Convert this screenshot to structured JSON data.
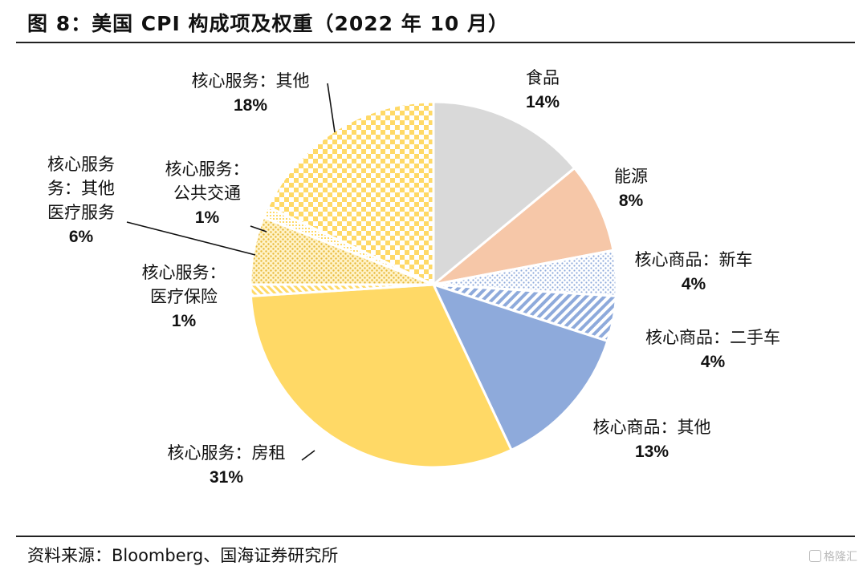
{
  "title": "图 8：美国 CPI 构成项及权重（2022 年 10 月）",
  "source": "资料来源：Bloomberg、国海证券研究所",
  "watermark": "格隆汇",
  "chart_data": {
    "type": "pie",
    "title": "图 8：美国 CPI 构成项及权重（2022 年 10 月）",
    "slices": [
      {
        "label": "食品",
        "value": 14,
        "value_label": "14%",
        "color": "#d9d9d9",
        "pattern": "solid"
      },
      {
        "label": "能源",
        "value": 8,
        "value_label": "8%",
        "color": "#f6c7a8",
        "pattern": "solid"
      },
      {
        "label": "核心商品：新车",
        "value": 4,
        "value_label": "4%",
        "color": "#8eaadb",
        "pattern": "dots"
      },
      {
        "label": "核心商品：二手车",
        "value": 4,
        "value_label": "4%",
        "color": "#8eaadb",
        "pattern": "stripes"
      },
      {
        "label": "核心商品：其他",
        "value": 13,
        "value_label": "13%",
        "color": "#8eaadb",
        "pattern": "solid"
      },
      {
        "label": "核心服务：房租",
        "value": 31,
        "value_label": "31%",
        "color": "#ffd966",
        "pattern": "solid"
      },
      {
        "label": "核心服务：医疗保险",
        "value": 1,
        "value_label": "1%",
        "color": "#ffd966",
        "pattern": "diag"
      },
      {
        "label": "核心服务：医疗服务",
        "value": 6,
        "value_label": "6%",
        "color": "#ffd966",
        "pattern": "dots"
      },
      {
        "label": "核心服务：公共交通",
        "value": 1,
        "value_label": "1%",
        "color": "#ffd966",
        "pattern": "fine"
      },
      {
        "label": "核心服务：其他",
        "value": 18,
        "value_label": "18%",
        "color": "#ffd966",
        "pattern": "check"
      }
    ],
    "label_lines": [
      [
        "食品"
      ],
      [
        "能源"
      ],
      [
        "核心商品：新车"
      ],
      [
        "核心商品：二手车"
      ],
      [
        "核心商品：其他"
      ],
      [
        "核心服务：房租"
      ],
      [
        "核心服务：",
        "医疗保险"
      ],
      [
        "核心服务",
        "务：其他",
        "医疗服务"
      ],
      [
        "核心服务：",
        "公共交通"
      ],
      [
        "核心服务：其他"
      ]
    ]
  }
}
